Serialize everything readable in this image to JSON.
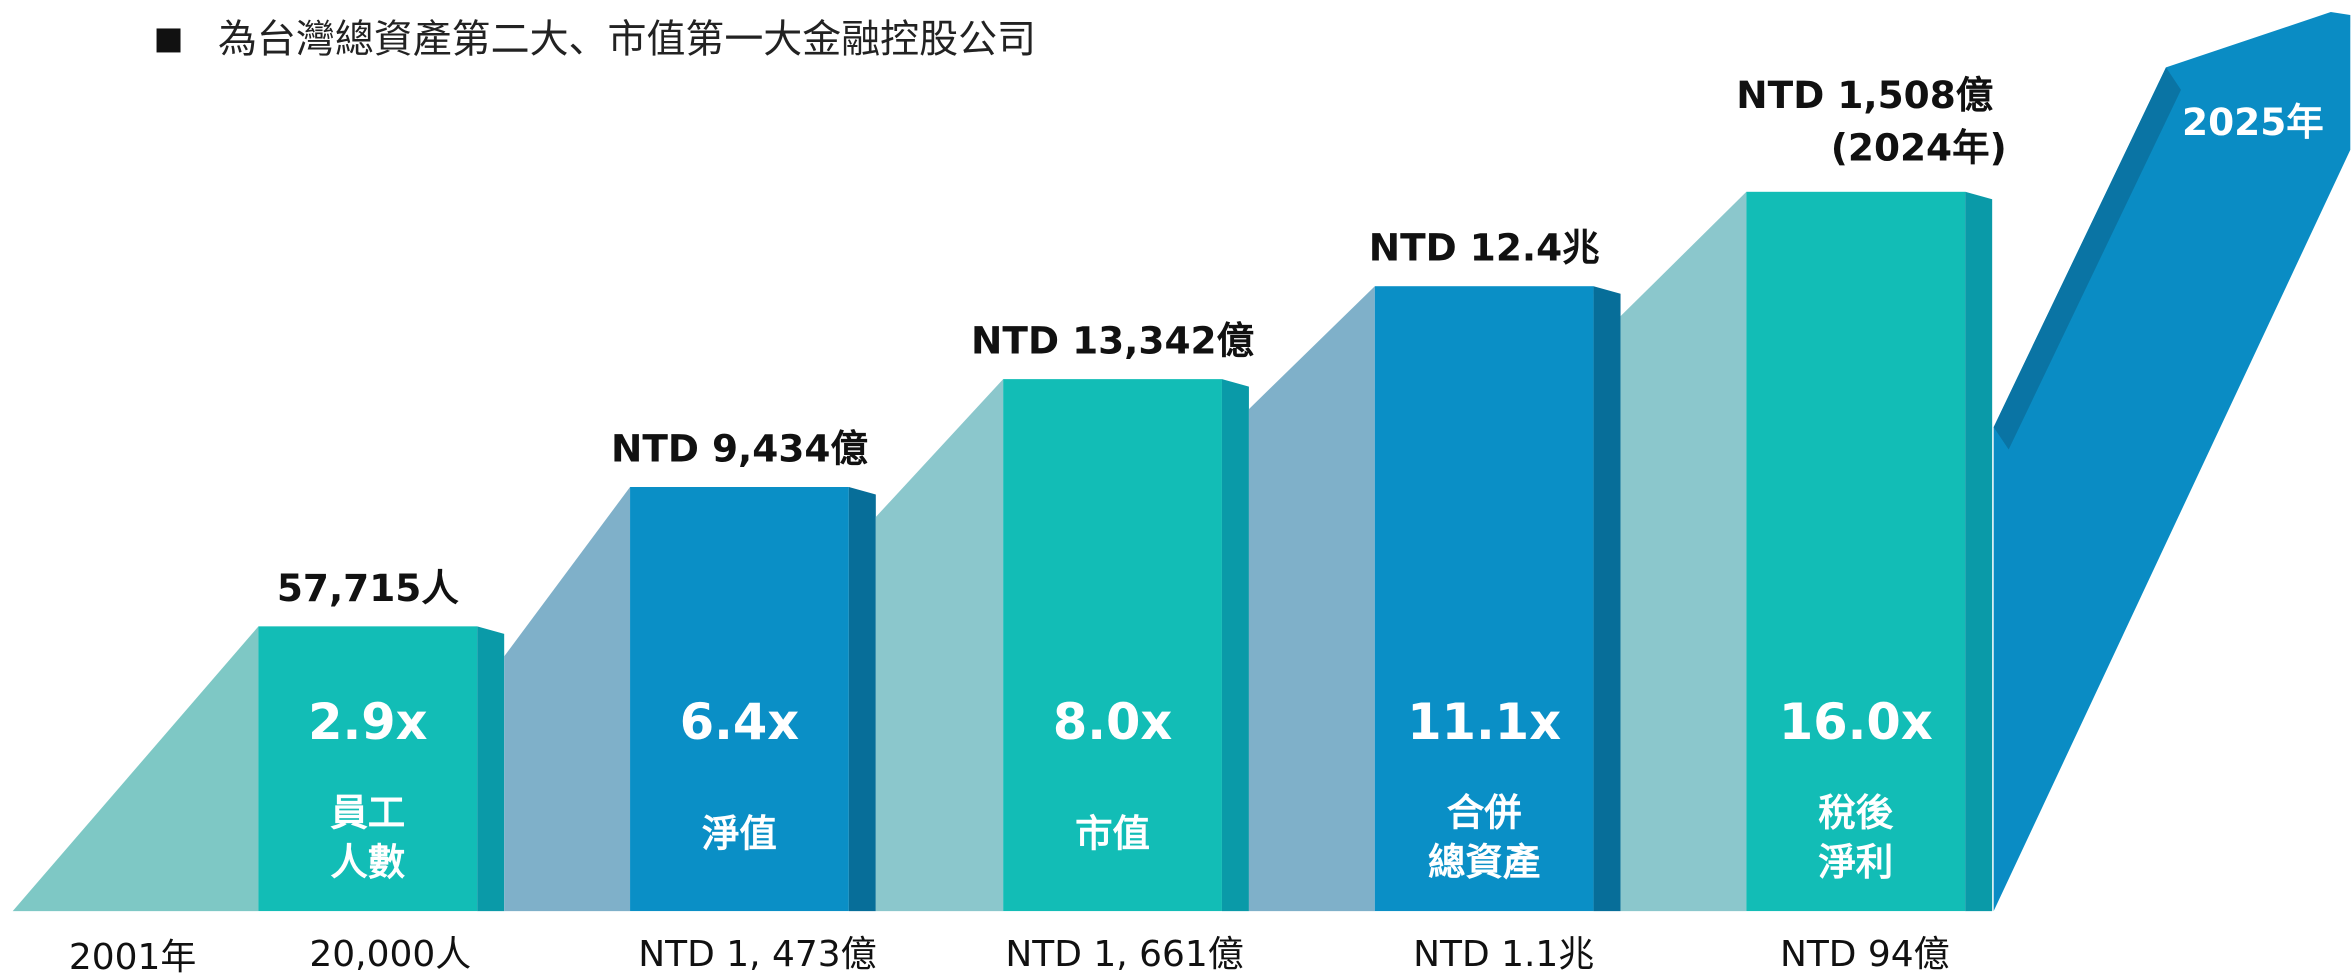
{
  "header": {
    "bullet_text": "為台灣總資產第二大、市值第一大金融控股公司"
  },
  "start_label": "2001年",
  "end_label": "2025年",
  "columns": [
    {
      "top_label": "57,715人",
      "multiplier": "2.9x",
      "name": [
        "員工",
        "人數"
      ],
      "base_label": "20,000人"
    },
    {
      "top_label": "NTD 9,434億",
      "multiplier": "6.4x",
      "name": [
        "淨值"
      ],
      "base_label": "NTD 1, 473億"
    },
    {
      "top_label": "NTD 13,342億",
      "multiplier": "8.0x",
      "name": [
        "市值"
      ],
      "base_label": "NTD 1, 661億"
    },
    {
      "top_label": "NTD 12.4兆",
      "multiplier": "11.1x",
      "name": [
        "合併",
        "總資產"
      ],
      "base_label": "NTD 1.1兆"
    },
    {
      "top_label": "NTD 1,508億",
      "top_note": "(2024年)",
      "multiplier": "16.0x",
      "name": [
        "稅後",
        "淨利"
      ],
      "base_label": "NTD 94億"
    }
  ]
}
